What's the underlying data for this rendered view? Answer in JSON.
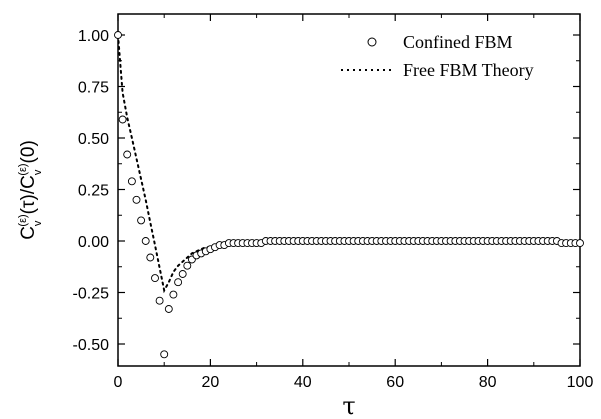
{
  "chart_data": {
    "type": "scatter",
    "title": "",
    "xlabel": "τ",
    "ylabel": "C_v^(ε)(τ)/C_v^(ε)(0)",
    "xlim": [
      0,
      100
    ],
    "ylim": [
      -0.6,
      1.1
    ],
    "xticks": [
      0,
      20,
      40,
      60,
      80,
      100
    ],
    "yticks": [
      1.0,
      0.75,
      0.5,
      0.25,
      0.0,
      -0.25,
      -0.5
    ],
    "xtick_labels": [
      "0",
      "20",
      "40",
      "60",
      "80",
      "100"
    ],
    "ytick_labels": [
      "1.00",
      "0.75",
      "0.50",
      "0.25",
      "0.00",
      "-0.25",
      "-0.50"
    ],
    "legend_position": "top-right",
    "series": [
      {
        "name": "Confined FBM",
        "style": "open-circle",
        "color": "#000000",
        "x": [
          0,
          1,
          2,
          3,
          4,
          5,
          6,
          7,
          8,
          9,
          10,
          11,
          12,
          13,
          14,
          15,
          16,
          17,
          18,
          19,
          20,
          21,
          22,
          23,
          24,
          25,
          26,
          27,
          28,
          29,
          30,
          31,
          32,
          33,
          34,
          35,
          36,
          37,
          38,
          39,
          40,
          41,
          42,
          43,
          44,
          45,
          46,
          47,
          48,
          49,
          50,
          51,
          52,
          53,
          54,
          55,
          56,
          57,
          58,
          59,
          60,
          61,
          62,
          63,
          64,
          65,
          66,
          67,
          68,
          69,
          70,
          71,
          72,
          73,
          74,
          75,
          76,
          77,
          78,
          79,
          80,
          81,
          82,
          83,
          84,
          85,
          86,
          87,
          88,
          89,
          90,
          91,
          92,
          93,
          94,
          95,
          96,
          97,
          98,
          99,
          100
        ],
        "y": [
          1.0,
          0.59,
          0.42,
          0.29,
          0.2,
          0.1,
          0.0,
          -0.08,
          -0.18,
          -0.29,
          -0.55,
          -0.33,
          -0.26,
          -0.2,
          -0.16,
          -0.12,
          -0.09,
          -0.07,
          -0.06,
          -0.05,
          -0.04,
          -0.03,
          -0.02,
          -0.02,
          -0.01,
          -0.01,
          -0.01,
          -0.01,
          -0.01,
          -0.01,
          -0.01,
          -0.01,
          0.0,
          0.0,
          0.0,
          0.0,
          0.0,
          0.0,
          0.0,
          0.0,
          0.0,
          0.0,
          0.0,
          0.0,
          0.0,
          0.0,
          0.0,
          0.0,
          0.0,
          0.0,
          0.0,
          0.0,
          0.0,
          0.0,
          0.0,
          0.0,
          0.0,
          0.0,
          0.0,
          0.0,
          0.0,
          0.0,
          0.0,
          0.0,
          0.0,
          0.0,
          0.0,
          0.0,
          0.0,
          0.0,
          0.0,
          0.0,
          0.0,
          0.0,
          0.0,
          0.0,
          0.0,
          0.0,
          0.0,
          0.0,
          0.0,
          0.0,
          0.0,
          0.0,
          0.0,
          0.0,
          0.0,
          0.0,
          0.0,
          0.0,
          0.0,
          0.0,
          0.0,
          0.0,
          0.0,
          0.0,
          -0.01,
          -0.01,
          -0.01,
          -0.01,
          -0.01
        ]
      },
      {
        "name": "Free FBM Theory",
        "style": "dotted-line",
        "color": "#000000",
        "x": [
          0,
          1,
          2,
          3,
          4,
          5,
          6,
          7,
          8,
          9,
          10,
          11,
          12,
          13,
          14,
          15,
          16,
          17,
          18,
          19,
          20,
          22,
          24,
          26,
          28,
          30,
          35,
          40,
          50,
          60,
          70,
          80,
          90,
          100
        ],
        "y": [
          1.0,
          0.72,
          0.6,
          0.5,
          0.4,
          0.3,
          0.2,
          0.09,
          -0.02,
          -0.13,
          -0.24,
          -0.2,
          -0.15,
          -0.12,
          -0.1,
          -0.08,
          -0.06,
          -0.05,
          -0.04,
          -0.03,
          -0.03,
          -0.02,
          -0.02,
          -0.01,
          -0.01,
          -0.01,
          0.0,
          0.0,
          0.0,
          0.0,
          0.0,
          0.0,
          0.0,
          0.0
        ]
      }
    ]
  }
}
